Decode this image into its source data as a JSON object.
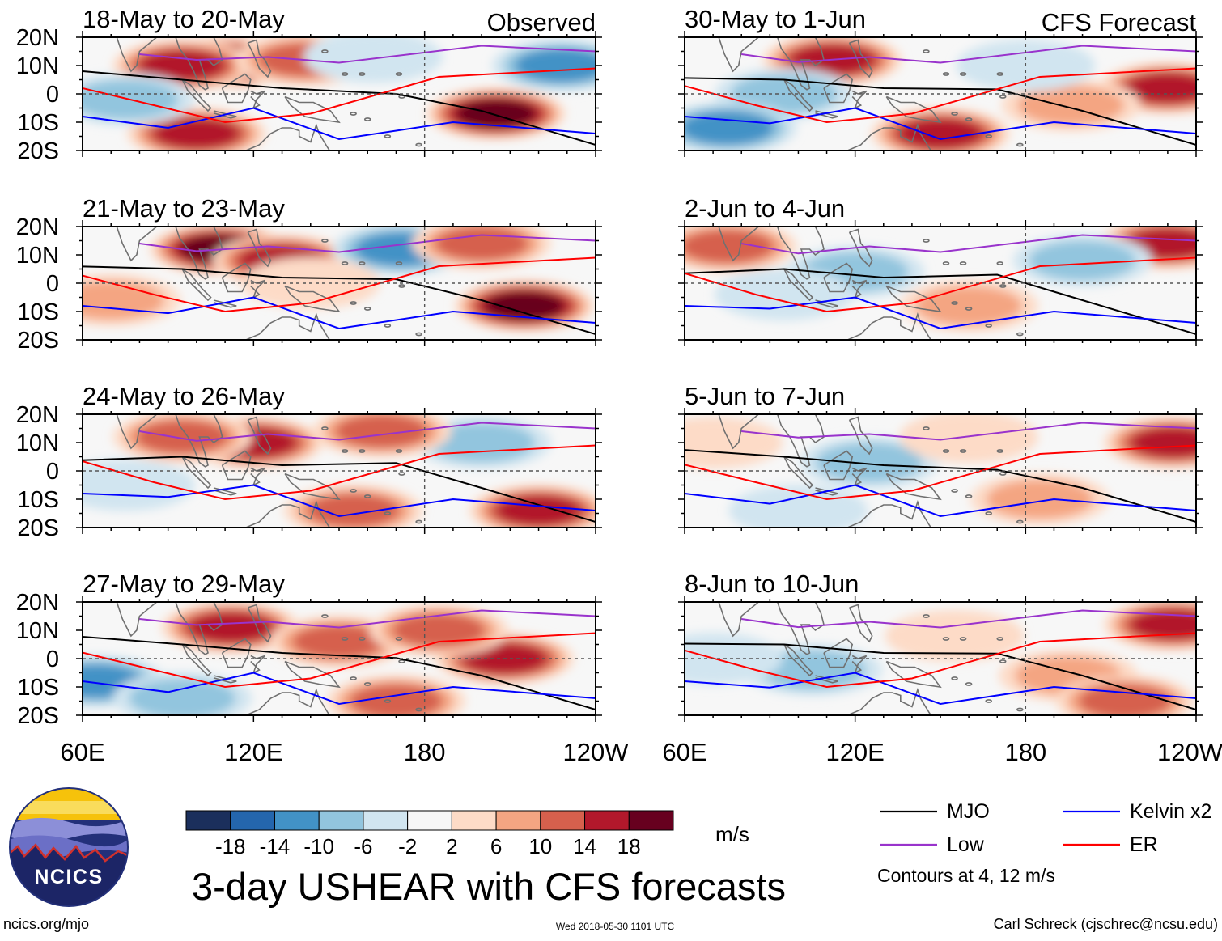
{
  "title": "3-day USHEAR with CFS forecasts",
  "site": "ncics.org/mjo",
  "timestamp": "Wed 2018-05-30 1101 UTC",
  "author": "Carl Schreck (cjschrec@ncsu.edu)",
  "logo_text": "NCICS",
  "column_labels": {
    "observed": "Observed",
    "forecast": "CFS Forecast"
  },
  "chart_data": {
    "type": "heatmap",
    "variable": "USHEAR anomaly",
    "units": "m/s",
    "x_ticks": [
      "60E",
      "120E",
      "180",
      "120W"
    ],
    "x_values_deg_east": [
      60,
      120,
      180,
      240
    ],
    "xlim_deg_east": [
      60,
      240
    ],
    "y_ticks": [
      "20N",
      "10N",
      "0",
      "10S",
      "20S"
    ],
    "y_values_deg": [
      20,
      10,
      0,
      -10,
      -20
    ],
    "ylim_deg": [
      -20,
      20
    ],
    "color_levels": [
      "-18",
      "-14",
      "-10",
      "-6",
      "-2",
      "2",
      "6",
      "10",
      "14",
      "18"
    ],
    "color_scale": [
      "#1b2f5c",
      "#2466ad",
      "#4292c6",
      "#92c5de",
      "#d1e5f0",
      "#f7f7f7",
      "#fddbc7",
      "#f4a582",
      "#d6604d",
      "#b2182b",
      "#67001f"
    ],
    "contours_note": "Contours at 4, 12 m/s",
    "legend": [
      {
        "label": "MJO",
        "color": "#000000"
      },
      {
        "label": "Kelvin x2",
        "color": "#0000ff"
      },
      {
        "label": "Low",
        "color": "#9933cc"
      },
      {
        "label": "ER",
        "color": "#ff0000"
      }
    ],
    "panels": [
      {
        "period": "18-May to 20-May",
        "source": "observed"
      },
      {
        "period": "21-May to 23-May",
        "source": "observed"
      },
      {
        "period": "24-May to 26-May",
        "source": "observed"
      },
      {
        "period": "27-May to 29-May",
        "source": "observed"
      },
      {
        "period": "30-May to 1-Jun",
        "source": "forecast"
      },
      {
        "period": "2-Jun to 4-Jun",
        "source": "forecast"
      },
      {
        "period": "5-Jun to 7-Jun",
        "source": "forecast"
      },
      {
        "period": "8-Jun to 10-Jun",
        "source": "forecast"
      }
    ],
    "anomaly_features": [
      [
        {
          "lon": 110,
          "lat": 11,
          "value": 20
        },
        {
          "lon": 95,
          "lat": 10,
          "value": 16
        },
        {
          "lon": 138,
          "lat": 12,
          "value": 13
        },
        {
          "lon": 205,
          "lat": -7,
          "value": 20
        },
        {
          "lon": 228,
          "lat": 10,
          "value": -13
        },
        {
          "lon": 100,
          "lat": -14,
          "value": 16
        },
        {
          "lon": 75,
          "lat": -2,
          "value": -8
        },
        {
          "lon": 162,
          "lat": 13,
          "value": -7
        }
      ],
      [
        {
          "lon": 108,
          "lat": 12,
          "value": 20
        },
        {
          "lon": 130,
          "lat": 8,
          "value": 17
        },
        {
          "lon": 215,
          "lat": -8,
          "value": 20
        },
        {
          "lon": 172,
          "lat": 12,
          "value": -12
        },
        {
          "lon": 140,
          "lat": 0,
          "value": 6
        },
        {
          "lon": 70,
          "lat": -6,
          "value": 8
        },
        {
          "lon": 200,
          "lat": 14,
          "value": 14
        }
      ],
      [
        {
          "lon": 120,
          "lat": 10,
          "value": 19
        },
        {
          "lon": 95,
          "lat": 12,
          "value": 14
        },
        {
          "lon": 220,
          "lat": -14,
          "value": 18
        },
        {
          "lon": 200,
          "lat": 10,
          "value": -11
        },
        {
          "lon": 75,
          "lat": -5,
          "value": -6
        },
        {
          "lon": 155,
          "lat": -14,
          "value": 15
        },
        {
          "lon": 165,
          "lat": 14,
          "value": 12
        }
      ],
      [
        {
          "lon": 112,
          "lat": 11,
          "value": 19
        },
        {
          "lon": 208,
          "lat": 0,
          "value": 19
        },
        {
          "lon": 65,
          "lat": -8,
          "value": -13
        },
        {
          "lon": 150,
          "lat": 6,
          "value": 12
        },
        {
          "lon": 95,
          "lat": -14,
          "value": -8
        },
        {
          "lon": 185,
          "lat": 10,
          "value": 14
        },
        {
          "lon": 170,
          "lat": -15,
          "value": 14
        }
      ],
      [
        {
          "lon": 112,
          "lat": 12,
          "value": 16
        },
        {
          "lon": 230,
          "lat": 2,
          "value": 19
        },
        {
          "lon": 95,
          "lat": 0,
          "value": -10
        },
        {
          "lon": 75,
          "lat": -12,
          "value": -12
        },
        {
          "lon": 150,
          "lat": -14,
          "value": 18
        },
        {
          "lon": 196,
          "lat": -4,
          "value": 10
        },
        {
          "lon": 180,
          "lat": 10,
          "value": -5
        }
      ],
      [
        {
          "lon": 120,
          "lat": 4,
          "value": -10
        },
        {
          "lon": 75,
          "lat": 13,
          "value": 12
        },
        {
          "lon": 230,
          "lat": 14,
          "value": 16
        },
        {
          "lon": 200,
          "lat": 8,
          "value": -8
        },
        {
          "lon": 160,
          "lat": -8,
          "value": 8
        },
        {
          "lon": 95,
          "lat": -4,
          "value": -6
        }
      ],
      [
        {
          "lon": 125,
          "lat": 3,
          "value": -11
        },
        {
          "lon": 232,
          "lat": 10,
          "value": 18
        },
        {
          "lon": 185,
          "lat": -10,
          "value": 9
        },
        {
          "lon": 100,
          "lat": -14,
          "value": -7
        },
        {
          "lon": 160,
          "lat": 12,
          "value": 6
        },
        {
          "lon": 70,
          "lat": 10,
          "value": 6
        }
      ],
      [
        {
          "lon": 105,
          "lat": -4,
          "value": -9
        },
        {
          "lon": 232,
          "lat": 12,
          "value": 17
        },
        {
          "lon": 195,
          "lat": -6,
          "value": 11
        },
        {
          "lon": 155,
          "lat": 8,
          "value": 7
        },
        {
          "lon": 70,
          "lat": 0,
          "value": -6
        },
        {
          "lon": 215,
          "lat": -15,
          "value": 12
        }
      ]
    ]
  }
}
